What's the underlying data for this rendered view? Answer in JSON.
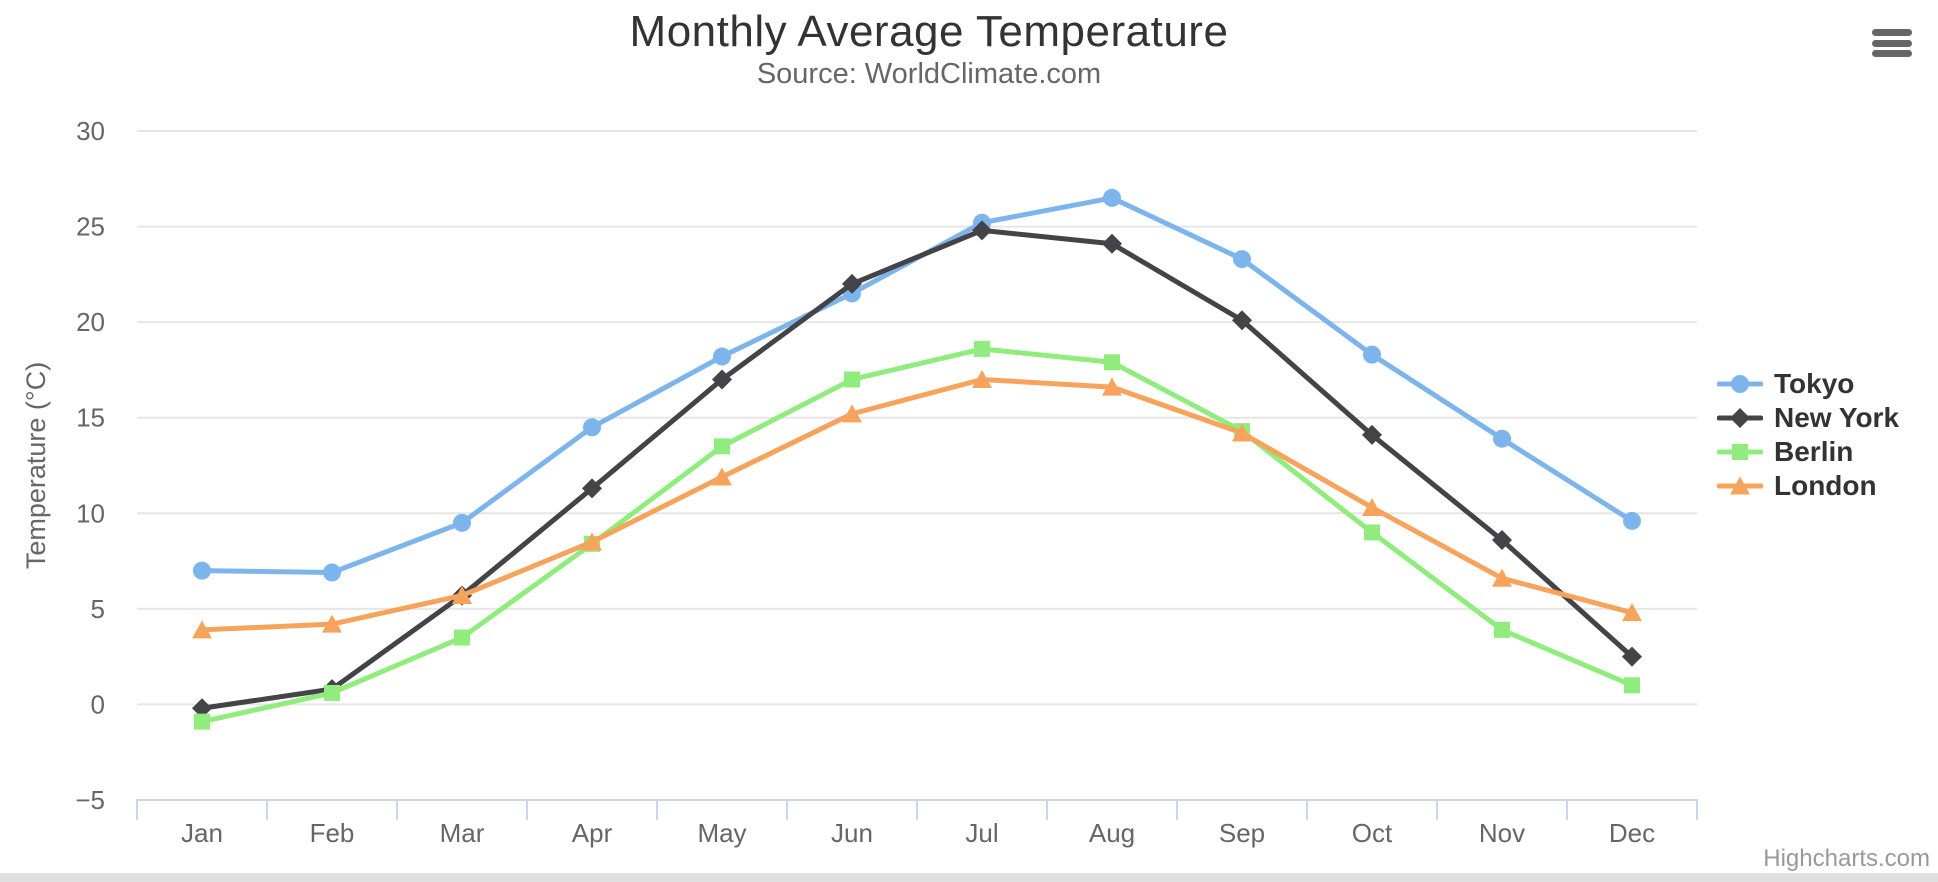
{
  "page": {
    "credit": "Highcharts.com"
  },
  "icons": {
    "export_menu": "hamburger"
  },
  "colors": {
    "grid": "#e6e6e6",
    "axis": "#ccd6eb",
    "tick_text": "#666666",
    "title_text": "#333333",
    "credit_text": "#999999",
    "footer_band": "#e0e0e0"
  },
  "chart_data": {
    "type": "line",
    "title": "Monthly Average Temperature",
    "subtitle": "Source: WorldClimate.com",
    "xlabel": "",
    "ylabel": "Temperature (°C)",
    "categories": [
      "Jan",
      "Feb",
      "Mar",
      "Apr",
      "May",
      "Jun",
      "Jul",
      "Aug",
      "Sep",
      "Oct",
      "Nov",
      "Dec"
    ],
    "ylim": [
      -5,
      30
    ],
    "grid": true,
    "legend_position": "right-middle",
    "yticks": [
      {
        "value": 30,
        "label": "30"
      },
      {
        "value": 25,
        "label": "25"
      },
      {
        "value": 20,
        "label": "20"
      },
      {
        "value": 15,
        "label": "15"
      },
      {
        "value": 10,
        "label": "10"
      },
      {
        "value": 5,
        "label": "5"
      },
      {
        "value": 0,
        "label": "0"
      },
      {
        "value": -5,
        "label": "−5"
      }
    ],
    "series": [
      {
        "name": "Tokyo",
        "color": "#7cb5ec",
        "marker": "circle",
        "values": [
          7.0,
          6.9,
          9.5,
          14.5,
          18.2,
          21.5,
          25.2,
          26.5,
          23.3,
          18.3,
          13.9,
          9.6
        ]
      },
      {
        "name": "New York",
        "color": "#434348",
        "marker": "diamond",
        "values": [
          -0.2,
          0.8,
          5.7,
          11.3,
          17.0,
          22.0,
          24.8,
          24.1,
          20.1,
          14.1,
          8.6,
          2.5
        ]
      },
      {
        "name": "Berlin",
        "color": "#90ed7d",
        "marker": "square",
        "values": [
          -0.9,
          0.6,
          3.5,
          8.4,
          13.5,
          17.0,
          18.6,
          17.9,
          14.3,
          9.0,
          3.9,
          1.0
        ]
      },
      {
        "name": "London",
        "color": "#f7a35c",
        "marker": "triangle",
        "values": [
          3.9,
          4.2,
          5.7,
          8.5,
          11.9,
          15.2,
          17.0,
          16.6,
          14.2,
          10.3,
          6.6,
          4.8
        ]
      }
    ]
  }
}
